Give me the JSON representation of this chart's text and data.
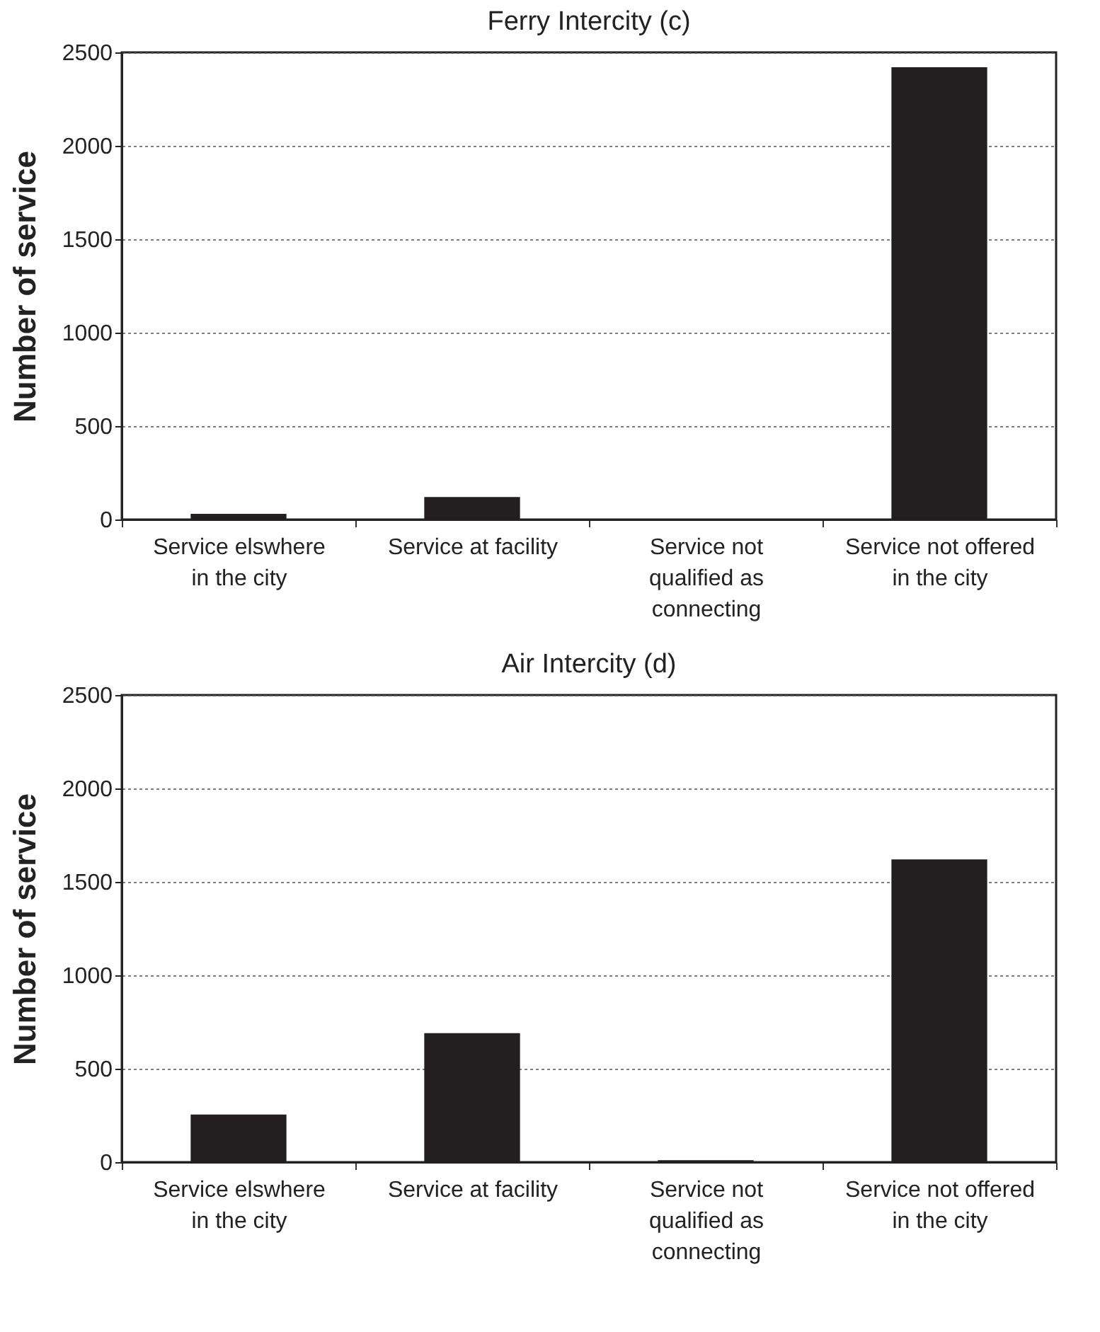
{
  "chart_data": [
    {
      "type": "bar",
      "title": "Ferry Intercity (c)",
      "ylabel": "Number of service",
      "categories": [
        "Service elswhere in the city",
        "Service at facility",
        "Service not qualified as connecting",
        "Service not offered in the city"
      ],
      "values": [
        30,
        120,
        0,
        2420
      ],
      "color": "#231f20",
      "ylim": [
        0,
        2500
      ],
      "yticks": [
        0,
        500,
        1000,
        1500,
        2000,
        2500
      ],
      "grid": "y"
    },
    {
      "type": "bar",
      "title": "Air Intercity (d)",
      "ylabel": "Number of service",
      "categories": [
        "Service elswhere in the city",
        "Service at facility",
        "Service not qualified as connecting",
        "Service not offered in the city"
      ],
      "values": [
        255,
        690,
        10,
        1620
      ],
      "color": "#231f20",
      "ylim": [
        0,
        2500
      ],
      "yticks": [
        0,
        500,
        1000,
        1500,
        2000,
        2500
      ],
      "grid": "y"
    }
  ]
}
